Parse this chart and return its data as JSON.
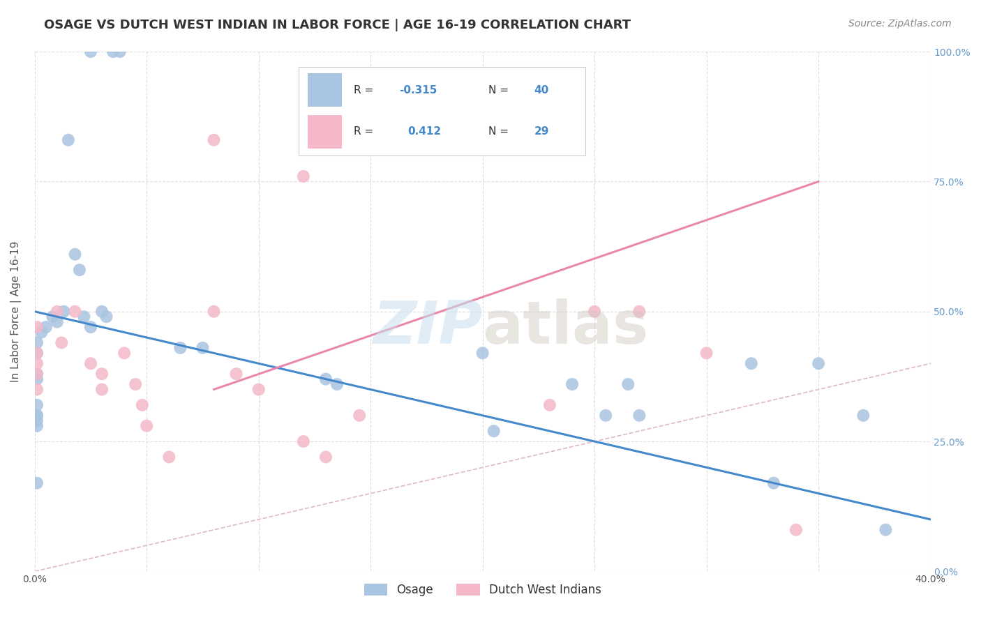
{
  "title": "OSAGE VS DUTCH WEST INDIAN IN LABOR FORCE | AGE 16-19 CORRELATION CHART",
  "source": "Source: ZipAtlas.com",
  "ylabel": "In Labor Force | Age 16-19",
  "xlim": [
    0.0,
    0.4
  ],
  "ylim": [
    0.0,
    1.0
  ],
  "xticks": [
    0.0,
    0.05,
    0.1,
    0.15,
    0.2,
    0.25,
    0.3,
    0.35,
    0.4
  ],
  "yticks": [
    0.0,
    0.25,
    0.5,
    0.75,
    1.0
  ],
  "ytick_labels": [
    "0.0%",
    "25.0%",
    "50.0%",
    "75.0%",
    "100.0%"
  ],
  "xtick_labels": [
    "0.0%",
    "",
    "",
    "",
    "",
    "",
    "",
    "",
    "40.0%"
  ],
  "osage_color": "#a8c4e0",
  "dutch_color": "#f4b8c8",
  "osage_line_color": "#4488cc",
  "dutch_line_color": "#e888aa",
  "diagonal_color": "#ddbbbb",
  "watermark_zip": "ZIP",
  "watermark_atlas": "atlas",
  "legend_labels": [
    "Osage",
    "Dutch West Indians"
  ],
  "osage_x": [
    0.025,
    0.035,
    0.038,
    0.015,
    0.018,
    0.02,
    0.022,
    0.025,
    0.03,
    0.032,
    0.008,
    0.01,
    0.013,
    0.005,
    0.003,
    0.001,
    0.001,
    0.001,
    0.001,
    0.001,
    0.001,
    0.001,
    0.001,
    0.001,
    0.001,
    0.065,
    0.075,
    0.13,
    0.135,
    0.2,
    0.205,
    0.24,
    0.255,
    0.265,
    0.27,
    0.32,
    0.33,
    0.35,
    0.37,
    0.38
  ],
  "osage_y": [
    1.0,
    1.0,
    1.0,
    0.83,
    0.61,
    0.58,
    0.49,
    0.47,
    0.5,
    0.49,
    0.49,
    0.48,
    0.5,
    0.47,
    0.46,
    0.44,
    0.42,
    0.38,
    0.37,
    0.32,
    0.3,
    0.3,
    0.29,
    0.28,
    0.17,
    0.43,
    0.43,
    0.37,
    0.36,
    0.42,
    0.27,
    0.36,
    0.3,
    0.36,
    0.3,
    0.4,
    0.17,
    0.4,
    0.3,
    0.08
  ],
  "dutch_x": [
    0.08,
    0.12,
    0.25,
    0.3,
    0.001,
    0.001,
    0.001,
    0.001,
    0.001,
    0.01,
    0.012,
    0.018,
    0.025,
    0.03,
    0.03,
    0.04,
    0.045,
    0.048,
    0.05,
    0.06,
    0.08,
    0.09,
    0.1,
    0.12,
    0.13,
    0.145,
    0.23,
    0.27,
    0.34
  ],
  "dutch_y": [
    0.83,
    0.76,
    0.5,
    0.42,
    0.47,
    0.42,
    0.4,
    0.38,
    0.35,
    0.5,
    0.44,
    0.5,
    0.4,
    0.35,
    0.38,
    0.42,
    0.36,
    0.32,
    0.28,
    0.22,
    0.5,
    0.38,
    0.35,
    0.25,
    0.22,
    0.3,
    0.32,
    0.5,
    0.08
  ],
  "osage_line_x": [
    0.0,
    0.4
  ],
  "osage_line_y": [
    0.5,
    0.1
  ],
  "dutch_line_x": [
    0.08,
    0.35
  ],
  "dutch_line_y": [
    0.35,
    0.75
  ],
  "background_color": "#ffffff",
  "grid_color": "#dddddd",
  "right_ytick_color": "#6699cc",
  "title_color": "#333333",
  "label_color": "#555555",
  "marker_size": 13,
  "title_fontsize": 13,
  "axis_label_fontsize": 11,
  "tick_fontsize": 10,
  "source_fontsize": 10
}
